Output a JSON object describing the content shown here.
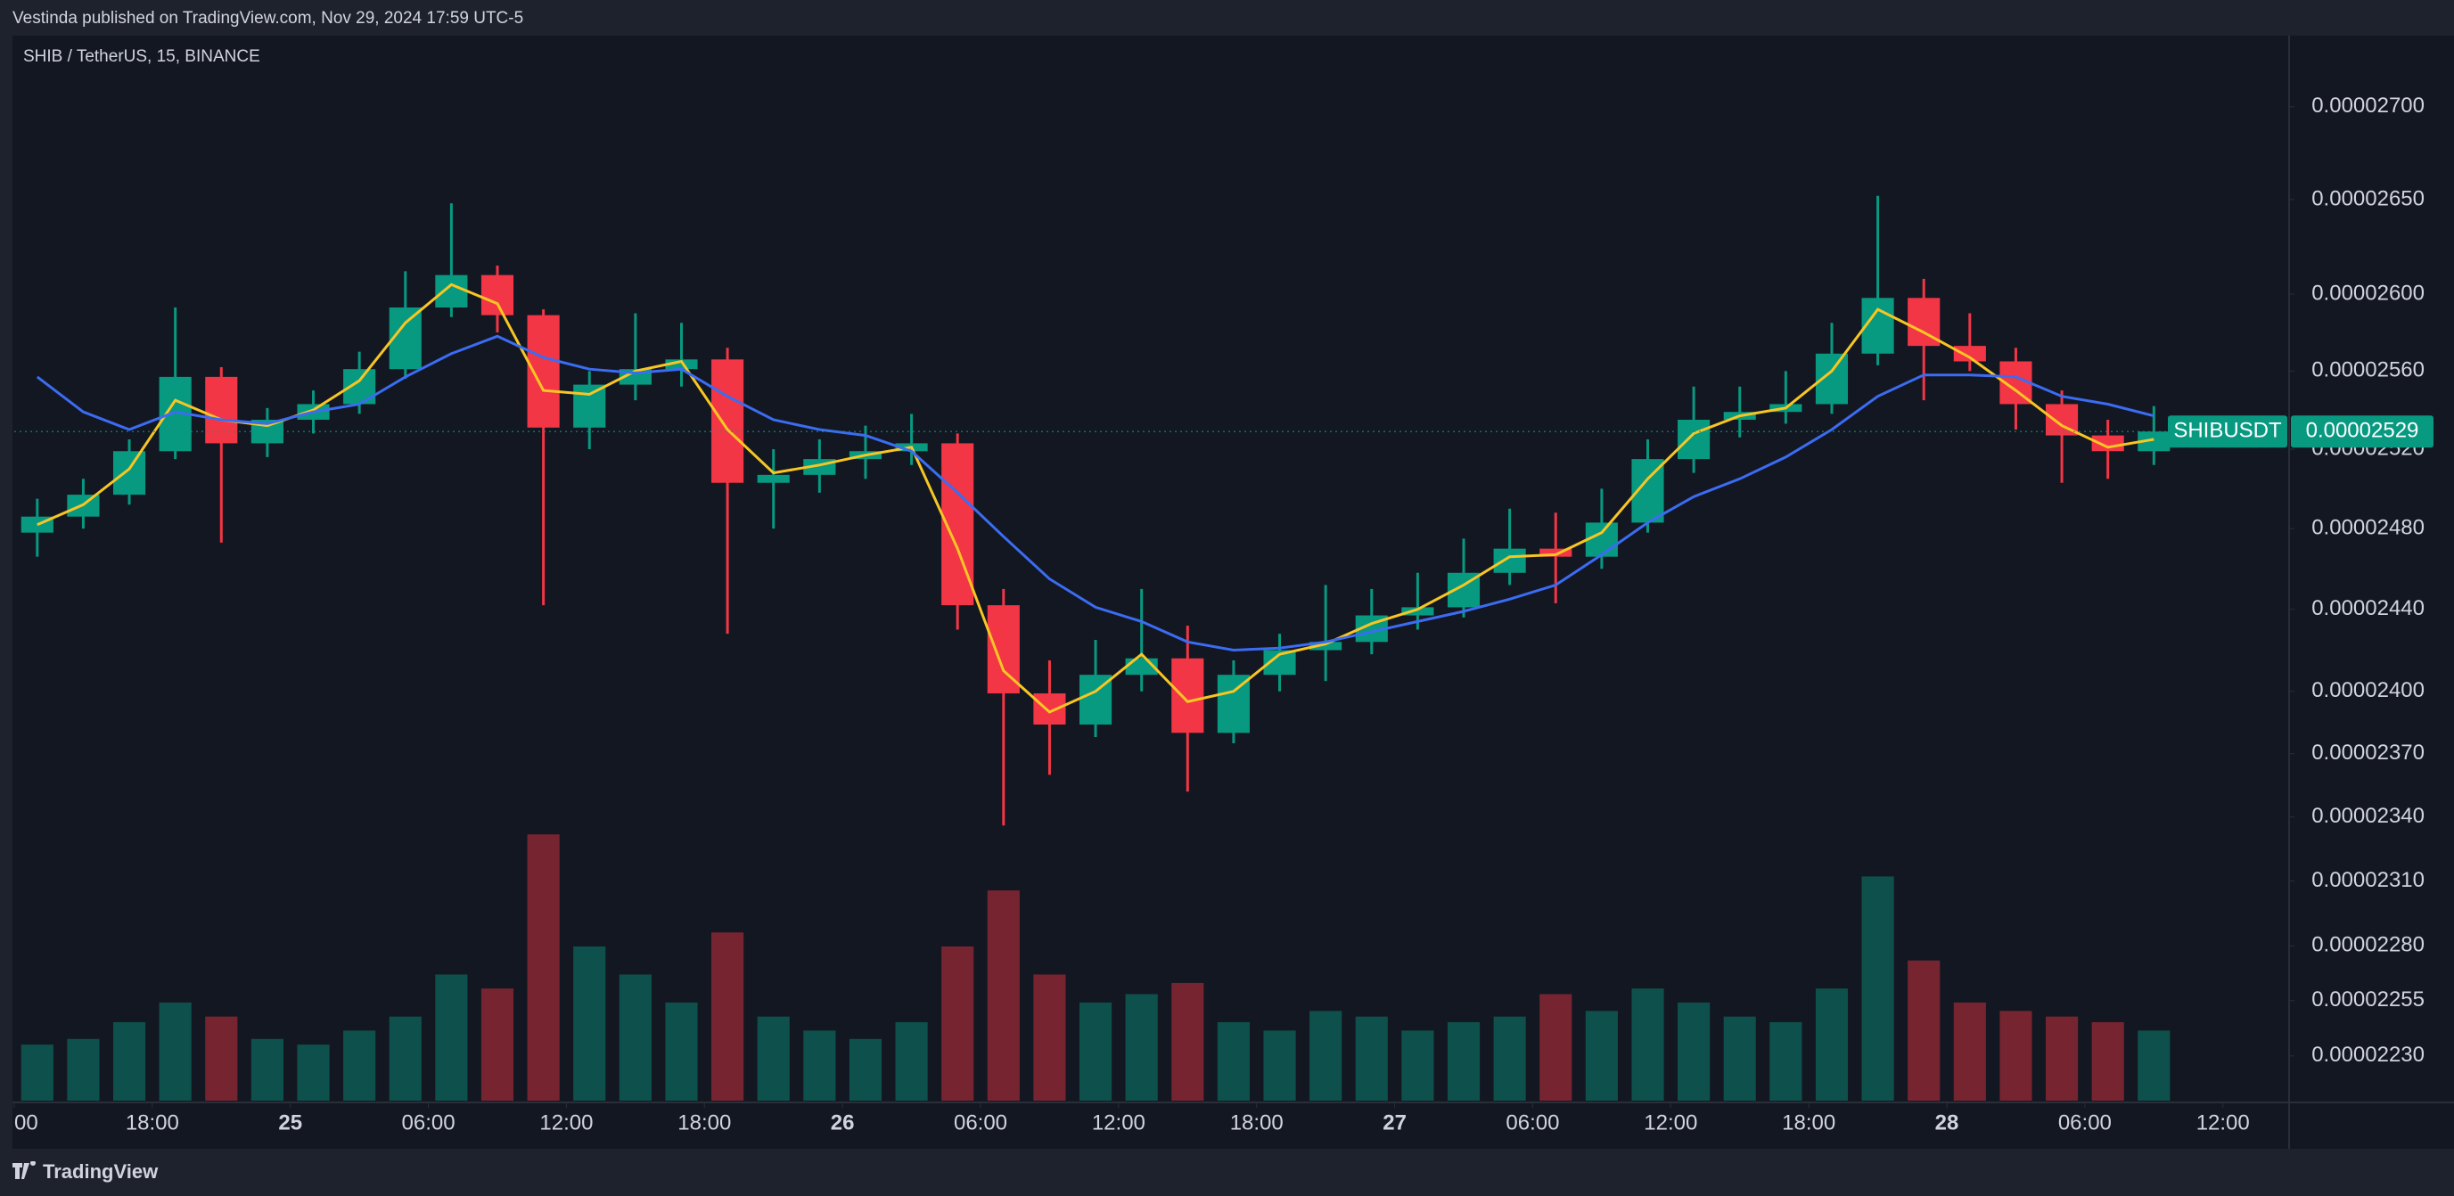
{
  "header": "Vestinda published on TradingView.com, Nov 29, 2024 17:59 UTC-5",
  "footer": "TradingView",
  "chart_data": {
    "type": "candlestick",
    "symbol": "SHIB / TetherUS, 15, BINANCE",
    "ticker_label": "SHIBUSDT",
    "x": [
      "2024-11-24T12:00",
      "2024-11-24T14:00",
      "2024-11-24T16:00",
      "2024-11-24T18:00",
      "2024-11-24T20:00",
      "2024-11-24T22:00",
      "2024-11-25T00:00",
      "2024-11-25T02:00",
      "2024-11-25T04:00",
      "2024-11-25T06:00",
      "2024-11-25T08:00",
      "2024-11-25T10:00",
      "2024-11-25T12:00",
      "2024-11-25T14:00",
      "2024-11-25T16:00",
      "2024-11-25T18:00",
      "2024-11-25T20:00",
      "2024-11-25T22:00",
      "2024-11-26T00:00",
      "2024-11-26T02:00",
      "2024-11-26T04:00",
      "2024-11-26T06:00",
      "2024-11-26T08:00",
      "2024-11-26T10:00",
      "2024-11-26T12:00",
      "2024-11-26T14:00",
      "2024-11-26T16:00",
      "2024-11-26T18:00",
      "2024-11-26T20:00",
      "2024-11-26T22:00",
      "2024-11-27T00:00",
      "2024-11-27T02:00",
      "2024-11-27T04:00",
      "2024-11-27T06:00",
      "2024-11-27T08:00",
      "2024-11-27T10:00",
      "2024-11-27T12:00",
      "2024-11-27T14:00",
      "2024-11-27T16:00",
      "2024-11-27T18:00",
      "2024-11-27T20:00",
      "2024-11-27T22:00",
      "2024-11-28T00:00",
      "2024-11-28T02:00",
      "2024-11-28T04:00",
      "2024-11-28T06:00",
      "2024-11-28T08:00"
    ],
    "open": [
      2.478e-05,
      2.486e-05,
      2.497e-05,
      2.519e-05,
      2.557e-05,
      2.523e-05,
      2.535e-05,
      2.543e-05,
      2.561e-05,
      2.593e-05,
      2.61e-05,
      2.589e-05,
      2.531e-05,
      2.553e-05,
      2.561e-05,
      2.566e-05,
      2.503e-05,
      2.507e-05,
      2.515e-05,
      2.519e-05,
      2.523e-05,
      2.442e-05,
      2.399e-05,
      2.384e-05,
      2.408e-05,
      2.416e-05,
      2.38e-05,
      2.408e-05,
      2.42e-05,
      2.424e-05,
      2.437e-05,
      2.441e-05,
      2.458e-05,
      2.47e-05,
      2.466e-05,
      2.483e-05,
      2.515e-05,
      2.535e-05,
      2.539e-05,
      2.543e-05,
      2.569e-05,
      2.598e-05,
      2.573e-05,
      2.565e-05,
      2.543e-05,
      2.527e-05,
      2.519e-05
    ],
    "high": [
      2.495e-05,
      2.505e-05,
      2.525e-05,
      2.593e-05,
      2.562e-05,
      2.541e-05,
      2.55e-05,
      2.57e-05,
      2.612e-05,
      2.648e-05,
      2.615e-05,
      2.592e-05,
      2.56e-05,
      2.59e-05,
      2.585e-05,
      2.572e-05,
      2.52e-05,
      2.525e-05,
      2.532e-05,
      2.538e-05,
      2.528e-05,
      2.45e-05,
      2.415e-05,
      2.425e-05,
      2.45e-05,
      2.432e-05,
      2.415e-05,
      2.428e-05,
      2.452e-05,
      2.45e-05,
      2.458e-05,
      2.475e-05,
      2.49e-05,
      2.488e-05,
      2.5e-05,
      2.525e-05,
      2.552e-05,
      2.552e-05,
      2.56e-05,
      2.585e-05,
      2.652e-05,
      2.608e-05,
      2.59e-05,
      2.572e-05,
      2.55e-05,
      2.535e-05,
      2.542e-05
    ],
    "low": [
      2.466e-05,
      2.48e-05,
      2.492e-05,
      2.515e-05,
      2.473e-05,
      2.516e-05,
      2.528e-05,
      2.538e-05,
      2.556e-05,
      2.588e-05,
      2.58e-05,
      2.442e-05,
      2.52e-05,
      2.545e-05,
      2.552e-05,
      2.428e-05,
      2.48e-05,
      2.498e-05,
      2.505e-05,
      2.512e-05,
      2.43e-05,
      2.336e-05,
      2.36e-05,
      2.378e-05,
      2.4e-05,
      2.352e-05,
      2.375e-05,
      2.4e-05,
      2.405e-05,
      2.418e-05,
      2.43e-05,
      2.436e-05,
      2.452e-05,
      2.443e-05,
      2.46e-05,
      2.478e-05,
      2.508e-05,
      2.526e-05,
      2.533e-05,
      2.538e-05,
      2.563e-05,
      2.545e-05,
      2.56e-05,
      2.53e-05,
      2.503e-05,
      2.505e-05,
      2.512e-05
    ],
    "close": [
      2.486e-05,
      2.497e-05,
      2.519e-05,
      2.557e-05,
      2.523e-05,
      2.535e-05,
      2.543e-05,
      2.561e-05,
      2.593e-05,
      2.61e-05,
      2.589e-05,
      2.531e-05,
      2.553e-05,
      2.561e-05,
      2.566e-05,
      2.503e-05,
      2.507e-05,
      2.515e-05,
      2.519e-05,
      2.523e-05,
      2.442e-05,
      2.399e-05,
      2.384e-05,
      2.408e-05,
      2.416e-05,
      2.38e-05,
      2.408e-05,
      2.42e-05,
      2.424e-05,
      2.437e-05,
      2.441e-05,
      2.458e-05,
      2.47e-05,
      2.466e-05,
      2.483e-05,
      2.515e-05,
      2.535e-05,
      2.539e-05,
      2.543e-05,
      2.569e-05,
      2.598e-05,
      2.573e-05,
      2.565e-05,
      2.543e-05,
      2.527e-05,
      2.519e-05,
      2.529e-05
    ],
    "volume": [
      20,
      22,
      28,
      35,
      30,
      22,
      20,
      25,
      30,
      45,
      40,
      95,
      55,
      45,
      35,
      60,
      30,
      25,
      22,
      28,
      55,
      75,
      45,
      35,
      38,
      42,
      28,
      25,
      32,
      30,
      25,
      28,
      30,
      38,
      32,
      40,
      35,
      30,
      28,
      40,
      80,
      50,
      35,
      32,
      30,
      28,
      25
    ],
    "series": [
      {
        "color": "#f7c623",
        "values": [
          2.482e-05,
          2.492e-05,
          2.51e-05,
          2.545e-05,
          2.535e-05,
          2.532e-05,
          2.54e-05,
          2.555e-05,
          2.585e-05,
          2.605e-05,
          2.595e-05,
          2.55e-05,
          2.548e-05,
          2.56e-05,
          2.565e-05,
          2.53e-05,
          2.508e-05,
          2.512e-05,
          2.517e-05,
          2.521e-05,
          2.47e-05,
          2.41e-05,
          2.39e-05,
          2.4e-05,
          2.418e-05,
          2.395e-05,
          2.4e-05,
          2.418e-05,
          2.423e-05,
          2.433e-05,
          2.44e-05,
          2.452e-05,
          2.466e-05,
          2.467e-05,
          2.478e-05,
          2.505e-05,
          2.528e-05,
          2.537e-05,
          2.541e-05,
          2.56e-05,
          2.592e-05,
          2.58e-05,
          2.567e-05,
          2.55e-05,
          2.532e-05,
          2.521e-05,
          2.525e-05
        ]
      },
      {
        "color": "#3b6cf2",
        "values": [
          2.557e-05,
          2.539e-05,
          2.53e-05,
          2.539e-05,
          2.535e-05,
          2.533e-05,
          2.539e-05,
          2.543e-05,
          2.557e-05,
          2.569e-05,
          2.578e-05,
          2.567e-05,
          2.561e-05,
          2.559e-05,
          2.561e-05,
          2.547e-05,
          2.535e-05,
          2.53e-05,
          2.527e-05,
          2.519e-05,
          2.498e-05,
          2.476e-05,
          2.455e-05,
          2.441e-05,
          2.434e-05,
          2.424e-05,
          2.42e-05,
          2.421e-05,
          2.424e-05,
          2.429e-05,
          2.434e-05,
          2.439e-05,
          2.445e-05,
          2.452e-05,
          2.467e-05,
          2.483e-05,
          2.496e-05,
          2.505e-05,
          2.516e-05,
          2.53e-05,
          2.547e-05,
          2.558e-05,
          2.558e-05,
          2.557e-05,
          2.547e-05,
          2.543e-05,
          2.537e-05
        ]
      }
    ],
    "up_color": "#089981",
    "down_color": "#f23645",
    "log_scale": true,
    "ylim": [
      2.21e-05,
      2.739e-05
    ],
    "yticks": [
      {
        "value": 2.7e-05,
        "label": "0.00002700"
      },
      {
        "value": 2.65e-05,
        "label": "0.00002650"
      },
      {
        "value": 2.6e-05,
        "label": "0.00002600"
      },
      {
        "value": 2.56e-05,
        "label": "0.00002560"
      },
      {
        "value": 2.52e-05,
        "label": "0.00002520"
      },
      {
        "value": 2.48e-05,
        "label": "0.00002480"
      },
      {
        "value": 2.44e-05,
        "label": "0.00002440"
      },
      {
        "value": 2.4e-05,
        "label": "0.00002400"
      },
      {
        "value": 2.37e-05,
        "label": "0.00002370"
      },
      {
        "value": 2.34e-05,
        "label": "0.00002340"
      },
      {
        "value": 2.31e-05,
        "label": "0.00002310"
      },
      {
        "value": 2.28e-05,
        "label": "0.00002280"
      },
      {
        "value": 2.255e-05,
        "label": "0.00002255"
      },
      {
        "value": 2.23e-05,
        "label": "0.00002230"
      }
    ],
    "xlim": [
      "2024-11-24T12:00",
      "2024-11-28T14:48"
    ],
    "xticks": [
      {
        "value": "2024-11-24T12:00",
        "label": "00"
      },
      {
        "value": "2024-11-24T18:00",
        "label": "18:00"
      },
      {
        "value": "2024-11-25T00:00",
        "label": "25"
      },
      {
        "value": "2024-11-25T06:00",
        "label": "06:00"
      },
      {
        "value": "2024-11-25T12:00",
        "label": "12:00"
      },
      {
        "value": "2024-11-25T18:00",
        "label": "18:00"
      },
      {
        "value": "2024-11-26T00:00",
        "label": "26"
      },
      {
        "value": "2024-11-26T06:00",
        "label": "06:00"
      },
      {
        "value": "2024-11-26T12:00",
        "label": "12:00"
      },
      {
        "value": "2024-11-26T18:00",
        "label": "18:00"
      },
      {
        "value": "2024-11-27T00:00",
        "label": "27"
      },
      {
        "value": "2024-11-27T06:00",
        "label": "06:00"
      },
      {
        "value": "2024-11-27T12:00",
        "label": "12:00"
      },
      {
        "value": "2024-11-27T18:00",
        "label": "18:00"
      },
      {
        "value": "2024-11-28T00:00",
        "label": "28"
      },
      {
        "value": "2024-11-28T06:00",
        "label": "06:00"
      },
      {
        "value": "2024-11-28T12:00",
        "label": "12:00"
      }
    ],
    "last_price": {
      "value": 2.529e-05,
      "label": "0.00002529"
    }
  }
}
